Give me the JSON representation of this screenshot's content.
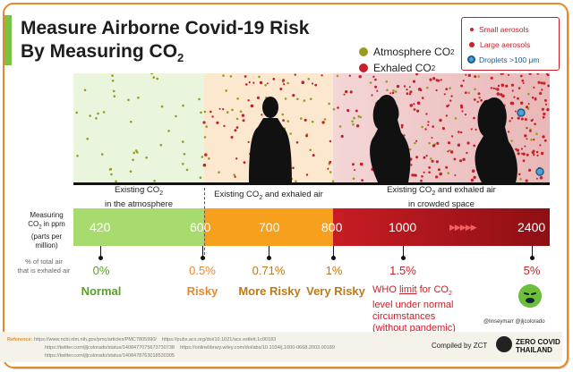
{
  "title": {
    "line1": "Measure Airborne Covid-19 Risk",
    "line2": "By Measuring CO",
    "line2_sub": "2"
  },
  "legend_main": {
    "atmosphere": "Atmosphere CO",
    "atmosphere_sub": "2",
    "exhaled": "Exhaled CO",
    "exhaled_sub": "2",
    "atmosphere_color": "#9a9a1e",
    "exhaled_color": "#c8202a"
  },
  "legend_aerosol": {
    "small": "Small aerosols",
    "large": "Large aerosols",
    "droplets": "Droplets >100 μm"
  },
  "zones": [
    {
      "line1": "Existing CO",
      "line1_sub": "2",
      "line2": "in the atmosphere"
    },
    {
      "line1": "Existing CO",
      "line1_sub": "2",
      "line1_rest": " and exhaled air"
    },
    {
      "line1": "Existing CO",
      "line1_sub": "2",
      "line1_rest": " and exhaled air",
      "line2": "in crowded space"
    }
  ],
  "axis_labels": {
    "ppm_line1": "Measuring",
    "ppm_line2": "CO",
    "ppm_line2_sub": "2",
    "ppm_line2_rest": " in ppm",
    "ppm_line3": "(parts per million)",
    "pct_line1": "% of total air",
    "pct_line2": "that is exhaled air"
  },
  "levels": [
    {
      "ppm": "420",
      "pct": "0%",
      "category": "Normal",
      "color": "#5a9e2a"
    },
    {
      "ppm": "600",
      "pct": "0.5%",
      "category": "Risky",
      "color": "#e8872a"
    },
    {
      "ppm": "700",
      "pct": "0.71%",
      "category": "More Risky",
      "color": "#c17a12"
    },
    {
      "ppm": "800",
      "pct": "1%",
      "category": "Very Risky",
      "color": "#c17a12"
    },
    {
      "ppm": "1000",
      "pct": "1.5%",
      "category": "",
      "color": "#c8202a"
    },
    {
      "ppm": "2400",
      "pct": "5%",
      "category": "",
      "color": "#c8202a"
    }
  ],
  "who_note": {
    "prefix": "WHO ",
    "limit": "limit",
    "rest1": " for CO",
    "rest1_sub": "2",
    "line2": "level under normal",
    "line3": "circumstances",
    "line4": "(without pandemic)"
  },
  "arrows": "▶▶▶▶▶",
  "footer": {
    "ref_label": "Reference:",
    "refs": [
      "https://www.ncbi.nlm.nih.gov/pmc/articles/PMC7805990/",
      "https://pubs.acs.org/doi/10.1021/acs.estlett.1c00183",
      "https://twitter.com/jljcolorado/status/1408477075673730738",
      "https://onlinelibrary.wiley.com/doi/abs/10.1034/j.1600-0668.2003.00189",
      "https://twitter.com/jljcolorado/status/1408478763018530305"
    ],
    "twitter": "@linseymarr @jljcolorado",
    "compiled": "Compiled by ZCT",
    "brand_line1": "ZERO COVID",
    "brand_line2": "THAILAND"
  }
}
